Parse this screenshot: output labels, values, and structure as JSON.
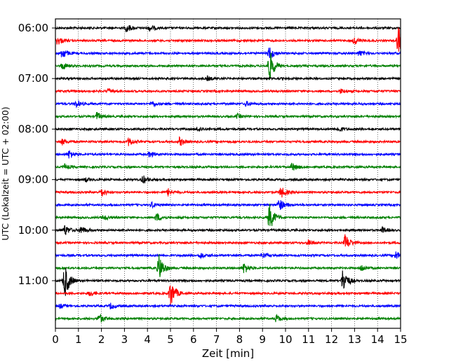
{
  "chart_data": {
    "type": "line",
    "title": "",
    "xlabel": "Zeit  [min]",
    "ylabel": "UTC (Lokalzeit = UTC + 02:00)",
    "xlim": [
      0,
      15
    ],
    "x_ticks": [
      "0",
      "1",
      "2",
      "3",
      "4",
      "5",
      "6",
      "7",
      "8",
      "9",
      "10",
      "11",
      "12",
      "13",
      "14",
      "15"
    ],
    "y_ticks": [
      "06:00",
      "07:00",
      "08:00",
      "09:00",
      "10:00",
      "11:00"
    ],
    "grid": "vertical dotted lines at every minute",
    "trace_interval_min": 15,
    "trace_colors": [
      "#000000",
      "#ff0000",
      "#0000ff",
      "#008000"
    ],
    "traces": [
      {
        "start": "06:00",
        "color": "#000000",
        "bursts": [
          [
            3.1,
            6
          ],
          [
            4.1,
            4
          ]
        ]
      },
      {
        "start": "06:15",
        "color": "#ff0000",
        "bursts": [
          [
            0.1,
            6
          ],
          [
            14.9,
            22
          ],
          [
            13.0,
            5
          ]
        ]
      },
      {
        "start": "06:30",
        "color": "#0000ff",
        "bursts": [
          [
            0.3,
            8
          ],
          [
            9.3,
            10
          ],
          [
            13.2,
            4
          ]
        ]
      },
      {
        "start": "06:45",
        "color": "#008000",
        "bursts": [
          [
            9.3,
            24
          ],
          [
            0.3,
            5
          ]
        ]
      },
      {
        "start": "07:00",
        "color": "#000000",
        "bursts": [
          [
            6.6,
            3
          ]
        ]
      },
      {
        "start": "07:15",
        "color": "#ff0000",
        "bursts": [
          [
            2.3,
            3
          ],
          [
            12.4,
            3
          ]
        ]
      },
      {
        "start": "07:30",
        "color": "#0000ff",
        "bursts": [
          [
            0.9,
            5
          ],
          [
            4.2,
            4
          ],
          [
            8.3,
            3
          ]
        ]
      },
      {
        "start": "07:45",
        "color": "#008000",
        "bursts": [
          [
            1.8,
            6
          ],
          [
            7.9,
            3
          ]
        ]
      },
      {
        "start": "08:00",
        "color": "#000000",
        "bursts": [
          [
            12.3,
            4
          ],
          [
            6.2,
            3
          ]
        ]
      },
      {
        "start": "08:15",
        "color": "#ff0000",
        "bursts": [
          [
            3.2,
            6
          ],
          [
            5.4,
            6
          ],
          [
            0.3,
            4
          ]
        ]
      },
      {
        "start": "08:30",
        "color": "#0000ff",
        "bursts": [
          [
            0.6,
            6
          ],
          [
            4.1,
            4
          ]
        ]
      },
      {
        "start": "08:45",
        "color": "#008000",
        "bursts": [
          [
            10.3,
            6
          ],
          [
            0.4,
            4
          ]
        ]
      },
      {
        "start": "09:00",
        "color": "#000000",
        "bursts": [
          [
            3.8,
            6
          ],
          [
            1.3,
            3
          ]
        ]
      },
      {
        "start": "09:15",
        "color": "#ff0000",
        "bursts": [
          [
            2.0,
            6
          ],
          [
            4.9,
            5
          ],
          [
            9.8,
            8
          ]
        ]
      },
      {
        "start": "09:30",
        "color": "#0000ff",
        "bursts": [
          [
            9.7,
            10
          ],
          [
            4.2,
            4
          ]
        ]
      },
      {
        "start": "09:45",
        "color": "#008000",
        "bursts": [
          [
            9.3,
            20
          ],
          [
            4.4,
            6
          ],
          [
            2.1,
            4
          ]
        ]
      },
      {
        "start": "10:00",
        "color": "#000000",
        "bursts": [
          [
            0.4,
            8
          ],
          [
            1.1,
            6
          ],
          [
            14.2,
            4
          ]
        ]
      },
      {
        "start": "10:15",
        "color": "#ff0000",
        "bursts": [
          [
            12.6,
            12
          ],
          [
            11.0,
            4
          ]
        ]
      },
      {
        "start": "10:30",
        "color": "#0000ff",
        "bursts": [
          [
            6.3,
            4
          ],
          [
            9.0,
            4
          ],
          [
            14.8,
            6
          ]
        ]
      },
      {
        "start": "10:45",
        "color": "#008000",
        "bursts": [
          [
            4.5,
            20
          ],
          [
            8.2,
            8
          ],
          [
            13.3,
            5
          ]
        ]
      },
      {
        "start": "11:00",
        "color": "#000000",
        "bursts": [
          [
            0.4,
            26
          ],
          [
            12.5,
            18
          ]
        ]
      },
      {
        "start": "11:15",
        "color": "#ff0000",
        "bursts": [
          [
            5.0,
            20
          ],
          [
            1.5,
            4
          ]
        ]
      },
      {
        "start": "11:30",
        "color": "#0000ff",
        "bursts": [
          [
            2.4,
            4
          ],
          [
            0.2,
            3
          ]
        ]
      },
      {
        "start": "11:45",
        "color": "#008000",
        "bursts": [
          [
            1.9,
            7
          ],
          [
            9.6,
            5
          ]
        ]
      }
    ]
  }
}
